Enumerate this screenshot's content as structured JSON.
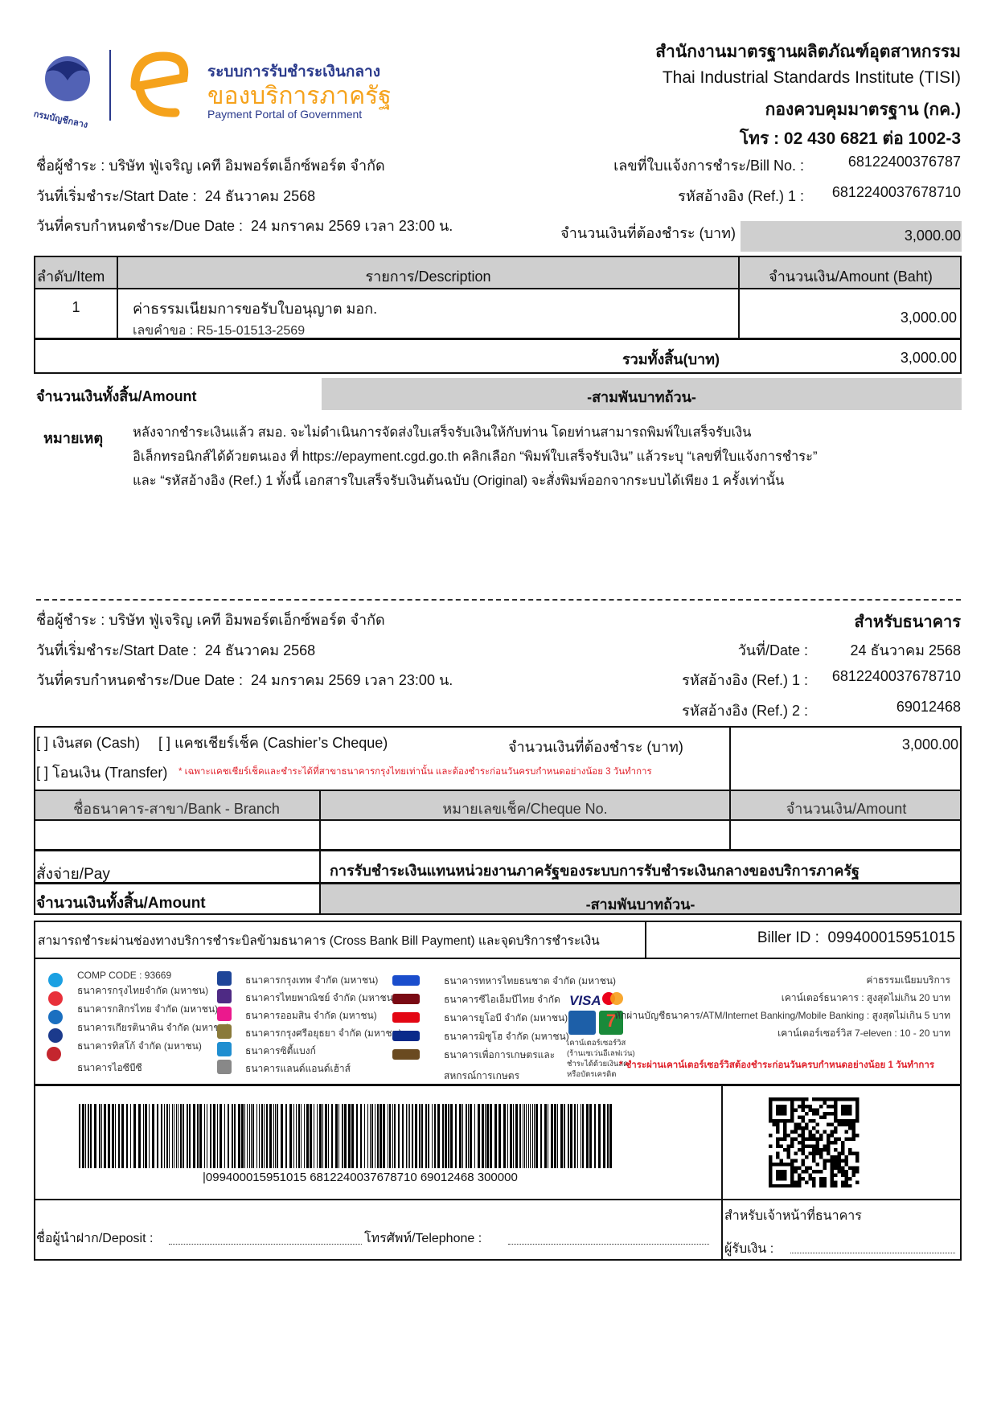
{
  "header": {
    "garuda_logo_text": "กรมบัญชีกลาง",
    "portal_logo": {
      "line1": "ระบบการรับชำระเงินกลาง",
      "line2": "ของบริการภาครัฐ",
      "line3": "Payment Portal of Government"
    },
    "org_th": "สำนักงานมาตรฐานผลิตภัณฑ์อุตสาหกรรม",
    "org_en": "Thai Industrial Standards Institute (TISI)",
    "division": "กองควบคุมมาตรฐาน (กค.)",
    "phone": "โทร : 02 430 6821 ต่อ 1002-3"
  },
  "payer": {
    "name_label": "ชื่อผู้ชำระ :",
    "name": "บริษัท ฟู่เจริญ เคที อิมพอร์ตเอ็กซ์พอร์ต จำกัด",
    "start_label": "วันที่เริ่มชำระ/Start Date :",
    "start": "24 ธันวาคม 2568",
    "due_label": "วันที่ครบกำหนดชำระ/Due Date :",
    "due": "24 มกราคม 2569 เวลา 23:00 น."
  },
  "bill": {
    "bill_no_label": "เลขที่ใบแจ้งการชำระ/Bill No. :",
    "bill_no": "68122400376787",
    "ref1_label": "รหัสอ้างอิง (Ref.) 1 :",
    "ref1": "6812240037678710",
    "amount_label": "จำนวนเงินที่ต้องชำระ (บาท)",
    "amount": "3,000.00"
  },
  "table": {
    "headers": [
      "ลำดับ/Item",
      "รายการ/Description",
      "จำนวนเงิน/Amount (Baht)"
    ],
    "rows": [
      {
        "item": "1",
        "description": "ค่าธรรมเนียมการขอรับใบอนุญาต มอก.",
        "sub": "เลขคำขอ : R5-15-01513-2569",
        "amount": "3,000.00"
      }
    ],
    "total_label": "รวมทั้งสิ้น(บาท)",
    "total": "3,000.00"
  },
  "amount_words_label": "จำนวนเงินทั้งสิ้น/Amount",
  "amount_words": "-สามพันบาทถ้วน-",
  "notes": {
    "label": "หมายเหตุ",
    "lines": [
      "หลังจากชำระเงินแล้ว สมอ. จะไม่ดำเนินการจัดส่งใบเสร็จรับเงินให้กับท่าน โดยท่านสามารถพิมพ์ใบเสร็จรับเงิน",
      "อิเล็กทรอนิกส์ได้ด้วยตนเอง ที่ https://epayment.cgd.go.th คลิกเลือก “พิมพ์ใบเสร็จรับเงิน” แล้วระบุ “เลขที่ใบแจ้งการชำระ”",
      "และ “รหัสอ้างอิง (Ref.) 1  ทั้งนี้ เอกสารใบเสร็จรับเงินต้นฉบับ (Original) จะสั่งพิมพ์ออกจากระบบได้เพียง 1 ครั้งเท่านั้น"
    ]
  },
  "bank_slip": {
    "payer_label": "ชื่อผู้ชำระ :",
    "payer": "บริษัท ฟู่เจริญ เคที อิมพอร์ตเอ็กซ์พอร์ต จำกัด",
    "start_label": "วันที่เริ่มชำระ/Start Date :",
    "start": "24 ธันวาคม 2568",
    "due_label": "วันที่ครบกำหนดชำระ/Due Date :",
    "due": "24 มกราคม 2569 เวลา 23:00 น.",
    "for_bank": "สำหรับธนาคาร",
    "date_label": "วันที่/Date :",
    "date": "24 ธันวาคม 2568",
    "ref1_label": "รหัสอ้างอิง (Ref.) 1 :",
    "ref1": "6812240037678710",
    "ref2_label": "รหัสอ้างอิง (Ref.) 2 :",
    "ref2": "69012468",
    "cash": "[ ] เงินสด (Cash)",
    "cheque": "[ ] แคชเชียร์เช็ค (Cashier’s Cheque)",
    "transfer": "[ ] โอนเงิน (Transfer)",
    "transfer_note": "* เฉพาะแคชเชียร์เช็คและชำระได้ที่สาขาธนาคารกรุงไทยเท่านั้น และต้องชำระก่อนวันครบกำหนดอย่างน้อย 3 วันทำการ",
    "amount_label": "จำนวนเงินที่ต้องชำระ (บาท)",
    "amount": "3,000.00",
    "cols": [
      "ชื่อธนาคาร-สาขา/Bank - Branch",
      "หมายเลขเช็ค/Cheque No.",
      "จำนวนเงิน/Amount"
    ],
    "pay_label": "สั่งจ่าย/Pay",
    "pay": "การรับชำระเงินแทนหน่วยงานภาครัฐของระบบการรับชำระเงินกลางของบริการภาครัฐ",
    "words_label": "จำนวนเงินทั้งสิ้น/Amount",
    "words": "-สามพันบาทถ้วน-",
    "cross_bank": "สามารถชำระผ่านช่องทางบริการชำระบิลข้ามธนาคาร (Cross Bank Bill Payment) และจุดบริการชำระเงิน",
    "biller_label": "Biller ID :",
    "biller": "099400015951015",
    "comp_code": "COMP CODE : 93669",
    "banks_col1": [
      "ธนาคารกรุงไทยจำกัด (มหาชน)",
      "ธนาคารกสิกรไทย จำกัด (มหาชน)",
      "ธนาคารเกียรตินาคิน จำกัด (มหาชน)",
      "ธนาคารทิสโก้ จำกัด (มหาชน)",
      "ธนาคารไอซีบีซี"
    ],
    "banks_col2": [
      "ธนาคารกรุงเทพ จำกัด (มหาชน)",
      "ธนาคารไทยพาณิชย์ จำกัด (มหาชน)",
      "ธนาคารออมสิน จำกัด (มหาชน)",
      "ธนาคารกรุงศรีอยุธยา จำกัด (มหาชน)",
      "ธนาคารซิตี้แบงก์",
      "ธนาคารแลนด์แอนด์เฮ้าส์"
    ],
    "banks_col3": [
      "ธนาคารทหารไทยธนชาต จำกัด (มหาชน)",
      "ธนาคารซีไอเอ็มบีไทย จำกัด",
      "ธนาคารยูโอบี จำกัด (มหาชน)",
      "ธนาคารมิซูโฮ จำกัด (มหาชน)",
      "ธนาคารเพื่อการเกษตรและ",
      "สหกรณ์การเกษตร"
    ],
    "counter_service": [
      "เคาน์เตอร์เซอร์วิส",
      "(ร้านเซเว่นอีเลฟเว่น)",
      "ชำระได้ด้วยเงินสด",
      "หรือบัตรเครดิต"
    ],
    "fees": [
      "ค่าธรรมเนียมบริการ",
      "เคาน์เตอร์ธนาคาร : สูงสุดไม่เกิน 20 บาท",
      "หักผ่านบัญชีธนาคาร/ATM/Internet Banking/Mobile Banking : สูงสุดไม่เกิน 5 บาท",
      "เคาน์เตอร์เซอร์วิส 7-eleven : 10 - 20 บาท"
    ],
    "fee_note": "* ชำระผ่านเคาน์เตอร์เซอร์วิสต้องชำระก่อนวันครบกำหนดอย่างน้อย 1 วันทำการ",
    "barcode_text": "|099400015951015 6812240037678710 69012468 300000",
    "deposit_label": "ชื่อผู้นำฝาก/Deposit :",
    "telephone_label": "โทรศัพท์/Telephone :",
    "officer_label": "สำหรับเจ้าหน้าที่ธนาคาร",
    "receiver_label": "ผู้รับเงิน :"
  },
  "colors": {
    "grey": "#cfcfcf",
    "portal_orange": "#f5a21b",
    "portal_blue": "#2a3a8c",
    "red": "#e0202a"
  }
}
